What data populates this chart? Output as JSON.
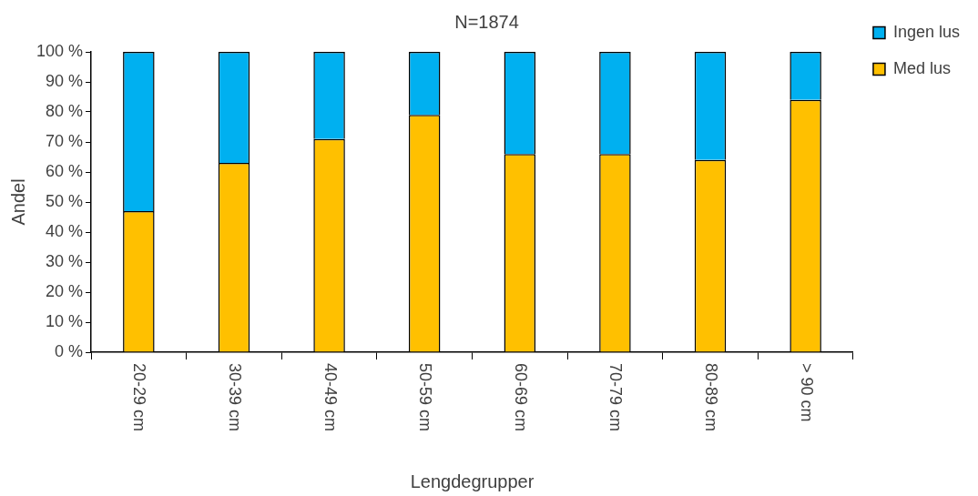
{
  "chart_data": {
    "type": "bar",
    "title": "N=1874",
    "xlabel": "Lengdegrupper",
    "ylabel": "Andel",
    "categories": [
      "20-29 cm",
      "30-39 cm",
      "40-49 cm",
      "50-59 cm",
      "60-69 cm",
      "70-79 cm",
      "80-89 cm",
      "> 90 cm"
    ],
    "stacked": true,
    "series": [
      {
        "name": "Med lus",
        "color": "#ffc000",
        "values": [
          47,
          63,
          71,
          79,
          66,
          66,
          64,
          84
        ]
      },
      {
        "name": "Ingen lus",
        "color": "#00b0f0",
        "values": [
          53,
          37,
          29,
          21,
          34,
          34,
          36,
          16
        ]
      }
    ],
    "ylim": [
      0,
      100
    ],
    "yticks": [
      {
        "value": 0,
        "label": "0 %"
      },
      {
        "value": 10,
        "label": "10 %"
      },
      {
        "value": 20,
        "label": "20 %"
      },
      {
        "value": 30,
        "label": "30 %"
      },
      {
        "value": 40,
        "label": "40 %"
      },
      {
        "value": 50,
        "label": "50 %"
      },
      {
        "value": 60,
        "label": "60 %"
      },
      {
        "value": 70,
        "label": "70 %"
      },
      {
        "value": 80,
        "label": "80 %"
      },
      {
        "value": 90,
        "label": "90 %"
      },
      {
        "value": 100,
        "label": "100 %"
      }
    ],
    "grid": false,
    "legend": "top right"
  }
}
